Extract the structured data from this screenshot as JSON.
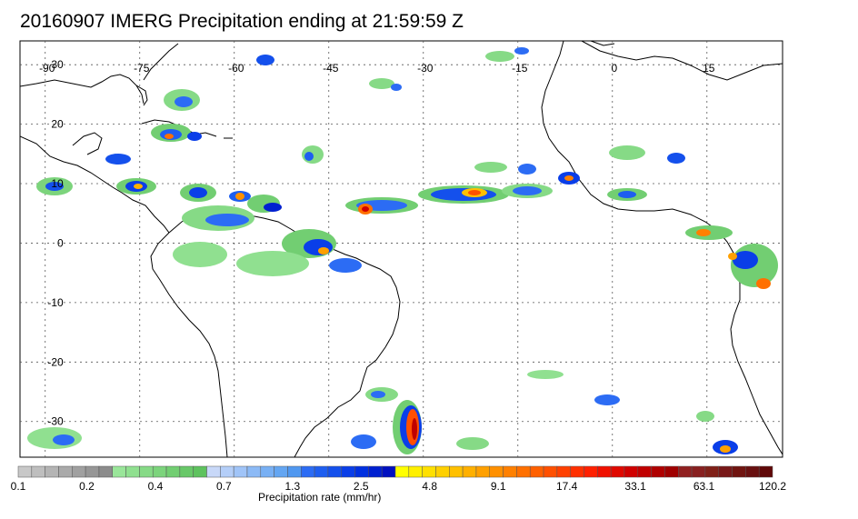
{
  "title": "20160907 IMERG Precipitation ending at 21:59:59 Z",
  "map": {
    "lon_labels": [
      "-90",
      "-75",
      "-60",
      "-45",
      "-30",
      "-15",
      "0",
      "15"
    ],
    "lat_labels": [
      "30",
      "20",
      "10",
      "0",
      "-10",
      "-20",
      "-30"
    ],
    "lon_values": [
      -90,
      -75,
      -60,
      -45,
      -30,
      -15,
      0,
      15
    ],
    "lat_values": [
      30,
      20,
      10,
      0,
      -10,
      -20,
      -30
    ],
    "lon_range": [
      -94,
      27
    ],
    "lat_range": [
      -36,
      34
    ],
    "grid": true
  },
  "colorbar": {
    "label": "Precipitation rate (mm/hr)",
    "tick_labels": [
      "0.1",
      "0.2",
      "0.4",
      "0.7",
      "1.3",
      "2.5",
      "4.8",
      "9.1",
      "17.4",
      "33.1",
      "63.1",
      "120.2"
    ],
    "groups": [
      {
        "colors": [
          "#c8c8c8",
          "#bebebe",
          "#b4b4b4",
          "#aaaaaa",
          "#a0a0a0",
          "#969696",
          "#8c8c8c"
        ]
      },
      {
        "colors": [
          "#9ae69a",
          "#90e090",
          "#86da86",
          "#7cd47c",
          "#72ce72",
          "#68c868",
          "#5ec25e"
        ]
      },
      {
        "colors": [
          "#c8d8f8",
          "#b4cef8",
          "#a0c4f8",
          "#8cbaf6",
          "#78b0f4",
          "#64a6f2",
          "#5098f0"
        ]
      },
      {
        "colors": [
          "#2c6cf4",
          "#1e5ef0",
          "#1450ec",
          "#0a3ee8",
          "#0030e0",
          "#0020d0",
          "#0010c0"
        ]
      },
      {
        "colors": [
          "#ffff00",
          "#fff000",
          "#ffe000",
          "#ffd000",
          "#ffc000",
          "#ffb000",
          "#ffa000"
        ]
      },
      {
        "colors": [
          "#ff9000",
          "#ff8000",
          "#ff7000",
          "#ff6000",
          "#ff5000",
          "#ff4000",
          "#ff3000"
        ]
      },
      {
        "colors": [
          "#ff2000",
          "#f01000",
          "#e00800",
          "#d00000",
          "#c00000",
          "#b00000",
          "#a00000"
        ]
      },
      {
        "colors": [
          "#902020",
          "#882020",
          "#802018",
          "#781818",
          "#701410",
          "#681010",
          "#600808"
        ]
      }
    ]
  }
}
